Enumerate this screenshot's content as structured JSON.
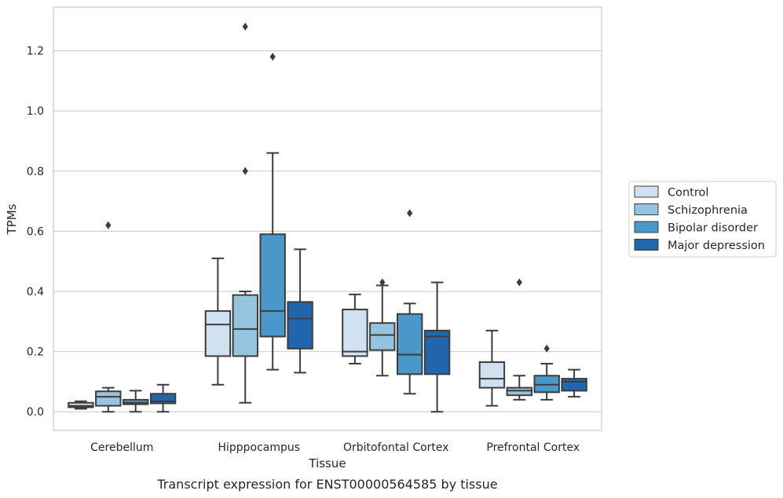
{
  "chart_data": {
    "type": "box",
    "xlabel": "Tissue",
    "ylabel": "TPMs",
    "caption": "Transcript expression for ENST00000564585 by tissue",
    "ylim": [
      -0.062,
      1.345
    ],
    "yticks": [
      "0.0",
      "0.2",
      "0.4",
      "0.6",
      "0.8",
      "1.0",
      "1.2"
    ],
    "grid": "horizontal",
    "legend_placement": "right",
    "categories": [
      "Cerebellum",
      "Hipppocampus",
      "Orbitofontal Cortex",
      "Prefrontal Cortex"
    ],
    "series": [
      {
        "name": "Control",
        "color": "#d0e1f2",
        "boxes": [
          {
            "whislo": 0.01,
            "q1": 0.015,
            "med": 0.02,
            "q3": 0.03,
            "whishi": 0.035,
            "fliers": []
          },
          {
            "whislo": 0.09,
            "q1": 0.185,
            "med": 0.29,
            "q3": 0.335,
            "whishi": 0.51,
            "fliers": []
          },
          {
            "whislo": 0.16,
            "q1": 0.185,
            "med": 0.2,
            "q3": 0.34,
            "whishi": 0.39,
            "fliers": []
          },
          {
            "whislo": 0.02,
            "q1": 0.08,
            "med": 0.11,
            "q3": 0.165,
            "whishi": 0.27,
            "fliers": []
          }
        ]
      },
      {
        "name": "Schizophrenia",
        "color": "#94c4df",
        "boxes": [
          {
            "whislo": 0.0,
            "q1": 0.02,
            "med": 0.05,
            "q3": 0.068,
            "whishi": 0.08,
            "fliers": [
              0.62
            ]
          },
          {
            "whislo": 0.03,
            "q1": 0.185,
            "med": 0.275,
            "q3": 0.388,
            "whishi": 0.4,
            "fliers": [
              0.8,
              1.28
            ]
          },
          {
            "whislo": 0.12,
            "q1": 0.205,
            "med": 0.255,
            "q3": 0.295,
            "whishi": 0.42,
            "fliers": [
              0.43
            ]
          },
          {
            "whislo": 0.04,
            "q1": 0.055,
            "med": 0.07,
            "q3": 0.08,
            "whishi": 0.12,
            "fliers": [
              0.43
            ]
          }
        ]
      },
      {
        "name": "Bipolar disorder",
        "color": "#4a98c9",
        "boxes": [
          {
            "whislo": 0.0,
            "q1": 0.025,
            "med": 0.03,
            "q3": 0.04,
            "whishi": 0.07,
            "fliers": []
          },
          {
            "whislo": 0.14,
            "q1": 0.25,
            "med": 0.335,
            "q3": 0.59,
            "whishi": 0.86,
            "fliers": [
              1.18
            ]
          },
          {
            "whislo": 0.06,
            "q1": 0.125,
            "med": 0.19,
            "q3": 0.325,
            "whishi": 0.36,
            "fliers": [
              0.66
            ]
          },
          {
            "whislo": 0.04,
            "q1": 0.065,
            "med": 0.09,
            "q3": 0.12,
            "whishi": 0.16,
            "fliers": [
              0.21
            ]
          }
        ]
      },
      {
        "name": "Major depression",
        "color": "#2166ac",
        "boxes": [
          {
            "whislo": 0.0,
            "q1": 0.028,
            "med": 0.035,
            "q3": 0.06,
            "whishi": 0.09,
            "fliers": []
          },
          {
            "whislo": 0.13,
            "q1": 0.21,
            "med": 0.31,
            "q3": 0.365,
            "whishi": 0.54,
            "fliers": []
          },
          {
            "whislo": 0.0,
            "q1": 0.125,
            "med": 0.25,
            "q3": 0.27,
            "whishi": 0.43,
            "fliers": []
          },
          {
            "whislo": 0.05,
            "q1": 0.07,
            "med": 0.1,
            "q3": 0.11,
            "whishi": 0.14,
            "fliers": []
          }
        ]
      }
    ]
  }
}
